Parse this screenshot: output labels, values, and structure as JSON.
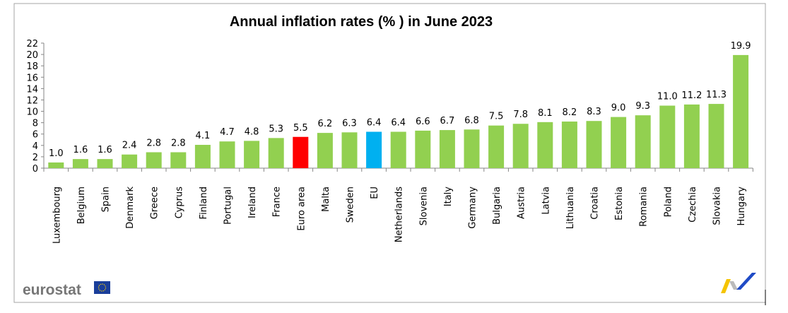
{
  "chart_data": {
    "type": "bar",
    "title": "Annual inflation rates (% ) in June 2023",
    "categories": [
      "Luxembourg",
      "Belgium",
      "Spain",
      "Denmark",
      "Greece",
      "Cyprus",
      "Finland",
      "Portugal",
      "Ireland",
      "France",
      "Euro area",
      "Malta",
      "Sweden",
      "EU",
      "Netherlands",
      "Slovenia",
      "Italy",
      "Germany",
      "Bulgaria",
      "Austria",
      "Latvia",
      "Lithuania",
      "Croatia",
      "Estonia",
      "Romania",
      "Poland",
      "Czechia",
      "Slovakia",
      "Hungary"
    ],
    "values": [
      1.0,
      1.6,
      1.6,
      2.4,
      2.8,
      2.8,
      4.1,
      4.7,
      4.8,
      5.3,
      5.5,
      6.2,
      6.3,
      6.4,
      6.4,
      6.6,
      6.7,
      6.8,
      7.5,
      7.8,
      8.1,
      8.2,
      8.3,
      9.0,
      9.3,
      11.0,
      11.2,
      11.3,
      19.9
    ],
    "data_labels": [
      "1.0",
      "1.6",
      "1.6",
      "2.4",
      "2.8",
      "2.8",
      "4.1",
      "4.7",
      "4.8",
      "5.3",
      "5.5",
      "6.2",
      "6.3",
      "6.4",
      "6.4",
      "6.6",
      "6.7",
      "6.8",
      "7.5",
      "7.8",
      "8.1",
      "8.2",
      "8.3",
      "9.0",
      "9.3",
      "11.0",
      "11.2",
      "11.3",
      "19.9"
    ],
    "ylim": [
      0,
      22
    ],
    "yticks": [
      0,
      2,
      4,
      6,
      8,
      10,
      12,
      14,
      16,
      18,
      20,
      22
    ],
    "grid": false,
    "legend": "none",
    "colors": {
      "default": "#92d050",
      "highlight": {
        "Euro area": "#ff0000",
        "EU": "#00b0f0"
      }
    }
  },
  "branding": {
    "logo_text": "eurostat"
  }
}
